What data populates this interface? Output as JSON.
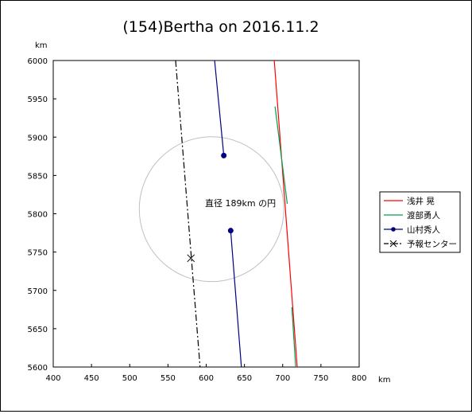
{
  "chart_data": {
    "type": "line",
    "title": "(154)Bertha on 2016.11.2",
    "xlabel": "km",
    "ylabel": "km",
    "xlim": [
      400,
      800
    ],
    "ylim": [
      5600,
      6000
    ],
    "xticks": [
      400,
      450,
      500,
      550,
      600,
      650,
      700,
      750,
      800
    ],
    "yticks": [
      5600,
      5650,
      5700,
      5750,
      5800,
      5850,
      5900,
      5950,
      6000
    ],
    "grid": false,
    "legend_position": "right",
    "annotation": "直径 189km の円",
    "circle": {
      "center": [
        607,
        5806
      ],
      "diameter_km": 189,
      "color": "#c0c0c0"
    },
    "series": [
      {
        "name": "浅井 晃",
        "color": "#ff0000",
        "style": "solid",
        "marker": "none",
        "segments": [
          [
            [
              689,
              6000
            ],
            [
              719,
              5600
            ]
          ]
        ]
      },
      {
        "name": "渡部勇人",
        "color": "#00a050",
        "style": "solid",
        "marker": "none",
        "segments": [
          [
            [
              690,
              5940
            ],
            [
              706,
              5813
            ]
          ],
          [
            [
              712,
              5678
            ],
            [
              717,
              5600
            ]
          ]
        ]
      },
      {
        "name": "山村秀人",
        "color": "#000080",
        "style": "solid",
        "marker": "dot",
        "segments": [
          [
            [
              611,
              6000
            ],
            [
              623,
              5876
            ]
          ],
          [
            [
              632,
              5778
            ],
            [
              646,
              5600
            ]
          ]
        ],
        "markers": [
          [
            623,
            5876
          ],
          [
            632,
            5778
          ]
        ]
      },
      {
        "name": "予報センター",
        "color": "#000000",
        "style": "dashdot",
        "marker": "x",
        "segments": [
          [
            [
              560,
              6000
            ],
            [
              592,
              5600
            ]
          ]
        ],
        "markers": [
          [
            580,
            5742
          ]
        ]
      }
    ]
  }
}
